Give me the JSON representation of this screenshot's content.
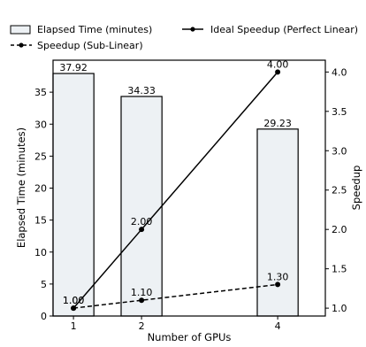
{
  "chart_data": {
    "type": "bar",
    "title": "",
    "xlabel": "Number of GPUs",
    "ylabel": "Elapsed Time (minutes)",
    "y2label": "Speedup",
    "categories": [
      "1",
      "2",
      "4"
    ],
    "x_values": [
      1,
      2,
      4
    ],
    "xlim": [
      0.7,
      4.7
    ],
    "ylim": [
      0,
      40
    ],
    "y2lim": [
      0.9,
      4.15
    ],
    "y_ticks": [
      0,
      5,
      10,
      15,
      20,
      25,
      30,
      35
    ],
    "y2_ticks": [
      1.0,
      1.5,
      2.0,
      2.5,
      3.0,
      3.5,
      4.0
    ],
    "bar_label_format": "fixed2",
    "line_label_format": "fixed2",
    "grid": false,
    "legend_position": "top (above plot)",
    "series": [
      {
        "name": "Elapsed Time (minutes)",
        "kind": "bar",
        "axis": "left",
        "values": [
          37.92,
          34.33,
          29.23
        ],
        "fill": "#edf1f4",
        "stroke": "#000000"
      },
      {
        "name": "Ideal Speedup (Perfect Linear)",
        "kind": "line",
        "style": "solid",
        "axis": "right",
        "values": [
          1.0,
          2.0,
          4.0
        ],
        "color": "#000000"
      },
      {
        "name": "Speedup (Sub-Linear)",
        "kind": "line",
        "style": "dashed",
        "axis": "right",
        "values": [
          1.0,
          1.1,
          1.3
        ],
        "color": "#000000"
      }
    ]
  }
}
